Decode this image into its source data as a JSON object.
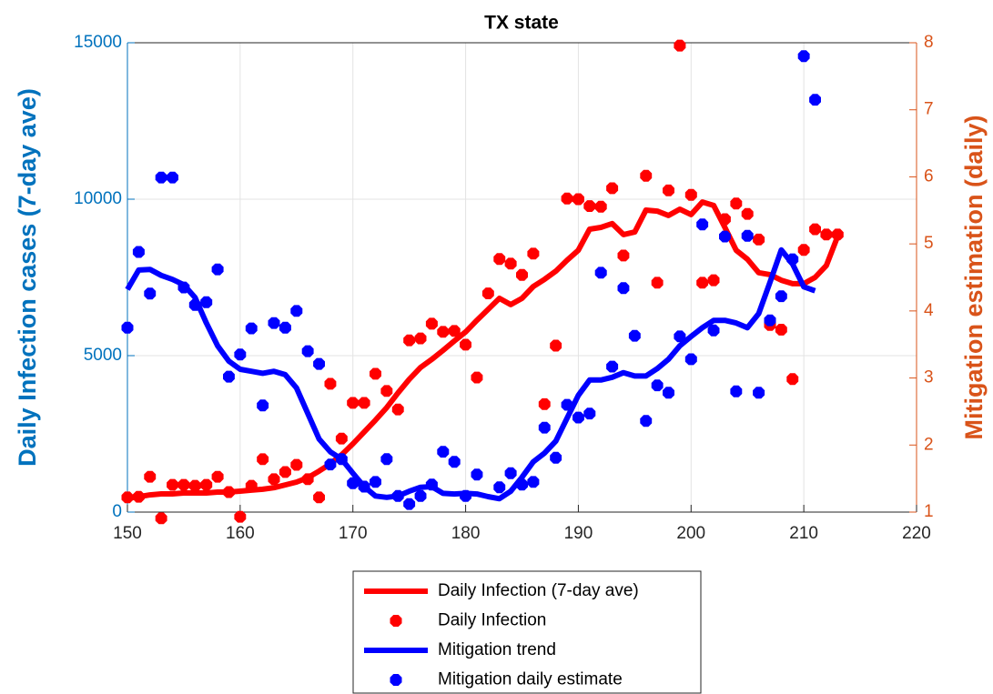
{
  "chart_data": {
    "type": "line",
    "title": "TX state",
    "ylabel": "Daily Infection cases (7-day ave)",
    "y2label": "Mitigation estimation (daily)",
    "x": [
      150,
      151,
      152,
      153,
      154,
      155,
      156,
      157,
      158,
      159,
      160,
      161,
      162,
      163,
      164,
      165,
      166,
      167,
      168,
      169,
      170,
      171,
      172,
      173,
      174,
      175,
      176,
      177,
      178,
      179,
      180,
      181,
      182,
      183,
      184,
      185,
      186,
      187,
      188,
      189,
      190,
      191,
      192,
      193,
      194,
      195,
      196,
      197,
      198,
      199,
      200,
      201,
      202,
      203,
      204,
      205,
      206,
      207,
      208,
      209,
      210,
      211,
      212,
      213
    ],
    "xlim": [
      150,
      220
    ],
    "xticks": [
      150,
      160,
      170,
      180,
      190,
      200,
      210,
      220
    ],
    "ylim": [
      0,
      15000
    ],
    "yticks": [
      0,
      5000,
      10000,
      15000
    ],
    "y2lim": [
      1,
      8
    ],
    "y2ticks": [
      1,
      2,
      3,
      4,
      5,
      6,
      7,
      8
    ],
    "grid": true,
    "legend": "bottom",
    "left_axis_color": "#0072bd",
    "right_axis_color": "#d95319",
    "series": [
      {
        "name": "Daily Infection (7-day ave)",
        "color": "#ff0000",
        "mode": "line",
        "axis": "y",
        "values": [
          440,
          490,
          550,
          580,
          580,
          610,
          610,
          610,
          640,
          640,
          670,
          700,
          730,
          780,
          870,
          960,
          1100,
          1310,
          1540,
          1830,
          2180,
          2560,
          2940,
          3340,
          3810,
          4240,
          4620,
          4880,
          5170,
          5470,
          5760,
          6130,
          6480,
          6830,
          6630,
          6830,
          7210,
          7440,
          7700,
          8050,
          8370,
          9040,
          9100,
          9220,
          8870,
          8950,
          9650,
          9620,
          9480,
          9680,
          9510,
          9910,
          9800,
          9100,
          8370,
          8080,
          7650,
          7590,
          7410,
          7300,
          7300,
          7500,
          7880,
          8810
        ]
      },
      {
        "name": "Daily Infection",
        "color": "#ff0000",
        "mode": "markers",
        "axis": "y",
        "values": [
          470,
          490,
          1130,
          -200,
          870,
          870,
          840,
          870,
          1130,
          640,
          -150,
          840,
          1690,
          1050,
          1280,
          1510,
          1050,
          470,
          4100,
          2350,
          3490,
          3490,
          4420,
          3870,
          3280,
          5490,
          5550,
          6020,
          5760,
          5790,
          5350,
          4300,
          6990,
          8090,
          7940,
          7580,
          8260,
          3450,
          5320,
          10020,
          10000,
          9780,
          9760,
          10350,
          8200,
          null,
          10750,
          7330,
          10280,
          14910,
          10140,
          7330,
          7410,
          9360,
          9860,
          9530,
          8710,
          5980,
          5830,
          4250,
          8380,
          9040,
          8870,
          8870
        ]
      },
      {
        "name": "Mitigation trend",
        "color": "#0000ff",
        "mode": "line",
        "axis": "y2",
        "values": [
          4.32,
          4.61,
          4.62,
          4.53,
          4.47,
          4.39,
          4.2,
          3.82,
          3.48,
          3.25,
          3.13,
          3.1,
          3.07,
          3.1,
          3.05,
          2.85,
          2.47,
          2.09,
          1.9,
          1.79,
          1.58,
          1.38,
          1.24,
          1.22,
          1.24,
          1.31,
          1.37,
          1.38,
          1.28,
          1.27,
          1.28,
          1.27,
          1.23,
          1.2,
          1.31,
          1.52,
          1.75,
          1.88,
          2.06,
          2.4,
          2.74,
          2.97,
          2.97,
          3.01,
          3.08,
          3.03,
          3.03,
          3.14,
          3.28,
          3.48,
          3.62,
          3.75,
          3.86,
          3.86,
          3.82,
          3.75,
          3.96,
          4.43,
          4.91,
          4.7,
          4.36,
          4.3,
          null,
          null
        ]
      },
      {
        "name": "Mitigation daily estimate",
        "color": "#0000ff",
        "mode": "markers",
        "axis": "y2",
        "values": [
          3.75,
          4.88,
          4.26,
          5.99,
          5.99,
          4.35,
          4.09,
          4.13,
          4.62,
          3.02,
          3.35,
          3.74,
          2.59,
          3.82,
          3.75,
          4.0,
          3.4,
          3.21,
          1.71,
          1.79,
          1.43,
          1.38,
          1.45,
          1.79,
          1.24,
          1.12,
          1.24,
          1.41,
          1.9,
          1.75,
          1.24,
          1.56,
          null,
          1.37,
          1.58,
          1.41,
          1.45,
          2.26,
          1.81,
          2.6,
          2.41,
          2.47,
          4.57,
          3.17,
          4.34,
          3.63,
          2.36,
          2.89,
          2.78,
          3.62,
          3.28,
          5.29,
          3.71,
          5.11,
          2.8,
          5.12,
          2.78,
          3.86,
          4.22,
          4.77,
          7.8,
          7.15,
          null,
          null
        ]
      }
    ]
  }
}
